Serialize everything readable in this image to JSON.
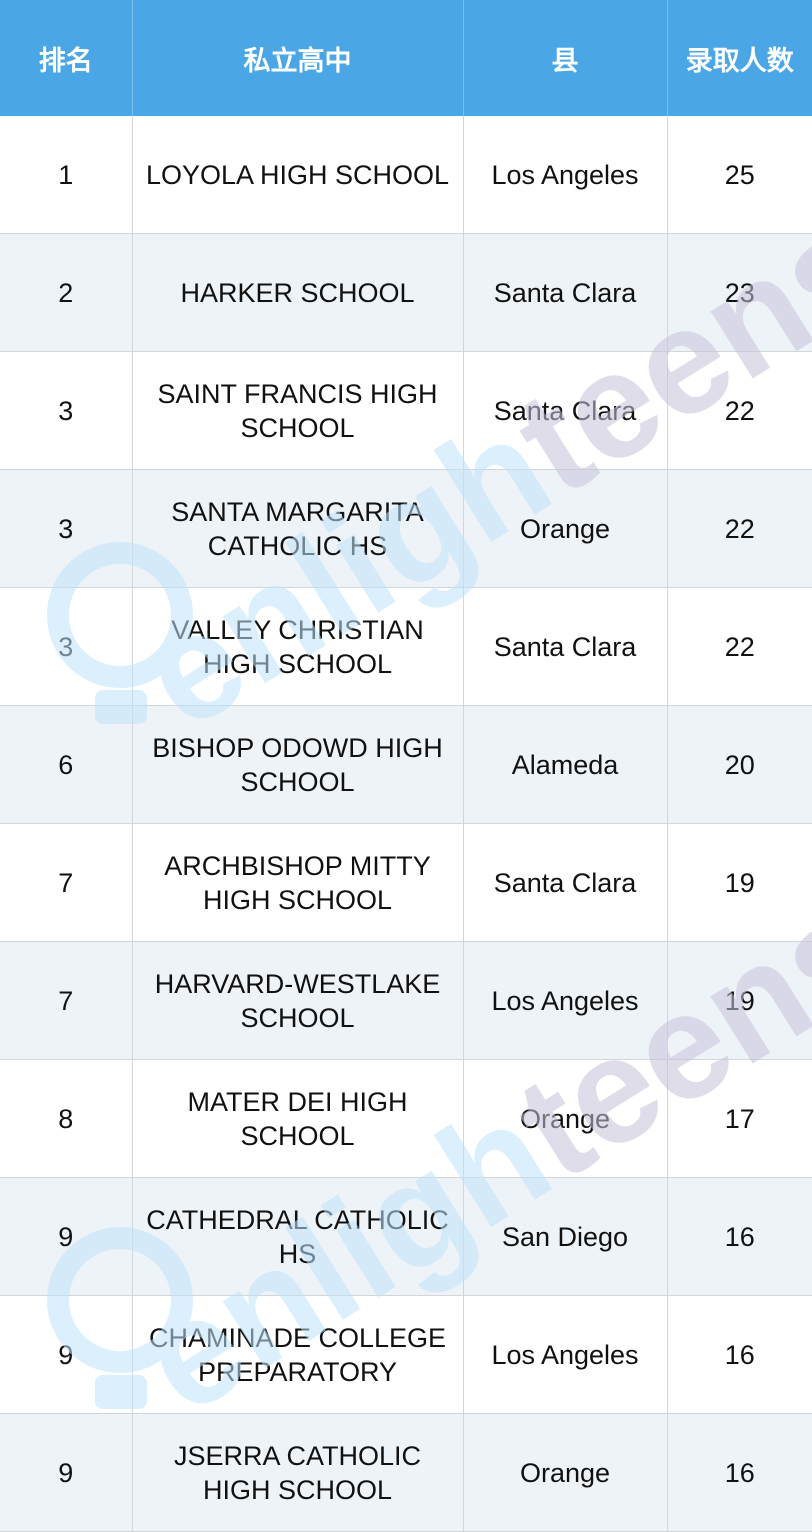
{
  "table": {
    "headers": [
      "排名",
      "私立高中",
      "县",
      "录取人数"
    ],
    "rows": [
      [
        "1",
        "LOYOLA HIGH SCHOOL",
        "Los Angeles",
        "25"
      ],
      [
        "2",
        "HARKER SCHOOL",
        "Santa Clara",
        "23"
      ],
      [
        "3",
        "SAINT FRANCIS HIGH SCHOOL",
        "Santa Clara",
        "22"
      ],
      [
        "3",
        "SANTA MARGARITA CATHOLIC HS",
        "Orange",
        "22"
      ],
      [
        "3",
        "VALLEY CHRISTIAN HIGH SCHOOL",
        "Santa Clara",
        "22"
      ],
      [
        "6",
        "BISHOP ODOWD HIGH SCHOOL",
        "Alameda",
        "20"
      ],
      [
        "7",
        "ARCHBISHOP MITTY HIGH SCHOOL",
        "Santa Clara",
        "19"
      ],
      [
        "7",
        "HARVARD-WESTLAKE SCHOOL",
        "Los Angeles",
        "19"
      ],
      [
        "8",
        "MATER DEI HIGH SCHOOL",
        "Orange",
        "17"
      ],
      [
        "9",
        "CATHEDRAL CATHOLIC HS",
        "San Diego",
        "16"
      ],
      [
        "9",
        "CHAMINADE COLLEGE PREPARATORY",
        "Los Angeles",
        "16"
      ],
      [
        "9",
        "JSERRA CATHOLIC HIGH SCHOOL",
        "Orange",
        "16"
      ]
    ]
  },
  "watermark": {
    "text": "enlighteens",
    "color_light": "#bfe3fb",
    "color_dark": "#c7c3dc"
  }
}
